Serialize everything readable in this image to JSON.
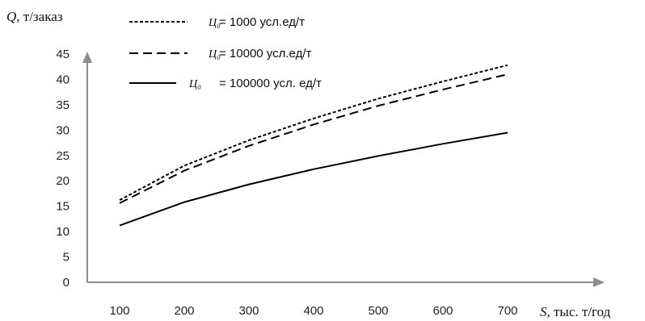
{
  "chart_data": {
    "type": "line",
    "x_axis": {
      "variable": "S",
      "unit": ", тыс. т/год",
      "ticks": [
        100,
        200,
        300,
        400,
        500,
        600,
        700
      ]
    },
    "y_axis": {
      "variable": "Q",
      "unit": ", т/заказ",
      "ticks": [
        0,
        5,
        10,
        15,
        20,
        25,
        30,
        35,
        40,
        45
      ],
      "ylim": [
        0,
        45
      ]
    },
    "x": [
      100,
      200,
      300,
      400,
      500,
      600,
      700
    ],
    "series": [
      {
        "symbol": "Ц₀",
        "label": "= 1000 усл.ед/т",
        "style": "dotted",
        "values": [
          16.2,
          23.0,
          28.0,
          32.3,
          36.2,
          39.6,
          42.8
        ]
      },
      {
        "symbol": "Ц₀",
        "label": "= 10000 усл.ед/т",
        "style": "dashed",
        "values": [
          15.6,
          22.0,
          26.9,
          31.1,
          34.8,
          38.0,
          41.0
        ]
      },
      {
        "symbol": "Ц₀",
        "label": "= 100000 усл. ед/т",
        "style": "solid",
        "values": [
          11.2,
          15.8,
          19.3,
          22.3,
          24.9,
          27.3,
          29.5
        ]
      }
    ],
    "grid": false,
    "legend_position": "top-left",
    "colors": {
      "line": "#000000",
      "axis": "#8c8c8c"
    }
  }
}
